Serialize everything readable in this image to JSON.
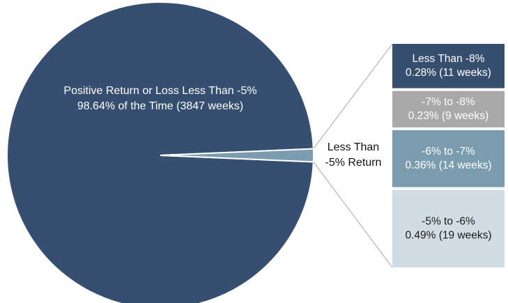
{
  "chart_data": {
    "type": "pie",
    "slices": [
      {
        "name": "Positive Return or Loss Less Than -5%",
        "label_lines": [
          "Positive Return or Loss Less Than -5%",
          "98.64% of the Time (3847 weeks)"
        ],
        "percent": 98.64,
        "weeks": 3847,
        "color": "#364f70"
      },
      {
        "name": "Less Than -5% Return",
        "label_lines": [
          "Less Than",
          "-5% Return"
        ],
        "percent": 1.36,
        "weeks": 53,
        "color": "#7b9cae"
      }
    ],
    "breakdown": [
      {
        "name": "Less Than -8%",
        "label_lines": [
          "Less Than -8%",
          "0.28% (11 weeks)"
        ],
        "percent": 0.28,
        "weeks": 11,
        "color": "#374f6f",
        "text_color": "#ffffff"
      },
      {
        "name": "-7% to -8%",
        "label_lines": [
          "-7% to -8%",
          "0.23% (9 weeks)"
        ],
        "percent": 0.23,
        "weeks": 9,
        "color": "#a8a9a8",
        "text_color": "#ffffff"
      },
      {
        "name": "-6% to -7%",
        "label_lines": [
          "-6% to -7%",
          "0.36% (14 weeks)"
        ],
        "percent": 0.36,
        "weeks": 14,
        "color": "#7b9cae",
        "text_color": "#ffffff"
      },
      {
        "name": "-5% to -6%",
        "label_lines": [
          "-5% to -6%",
          "0.49% (19 weeks)"
        ],
        "percent": 0.49,
        "weeks": 19,
        "color": "#d1dde3",
        "text_color": "#1a1a1a"
      }
    ]
  }
}
